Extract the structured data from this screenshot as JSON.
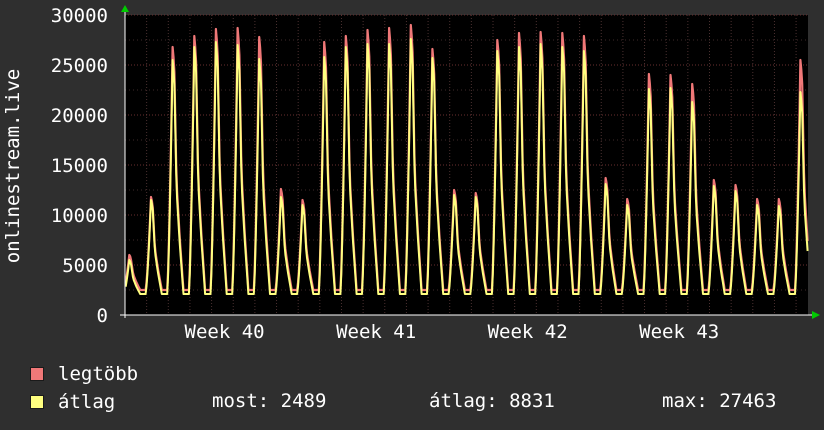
{
  "chart_data": {
    "type": "area",
    "ylabel": "onlinestream.live",
    "ylim": [
      0,
      30000
    ],
    "yticks": [
      0,
      5000,
      10000,
      15000,
      20000,
      25000,
      30000
    ],
    "xticks": [
      "Week 40",
      "Week 41",
      "Week 42",
      "Week 43"
    ],
    "grid": true,
    "legend_placement": "bottom-left",
    "series": [
      {
        "name": "legtöbb",
        "color": "#f07878",
        "daily_peaks": [
          6000,
          11800,
          26800,
          27900,
          28600,
          28700,
          27800,
          12600,
          11500,
          27300,
          27900,
          28500,
          28700,
          29000,
          26600,
          12500,
          12200,
          27500,
          28200,
          28300,
          28200,
          27900,
          13700,
          11600,
          24100,
          24000,
          23100,
          13500,
          13000,
          11600,
          11600,
          25500
        ]
      },
      {
        "name": "átlag",
        "color": "#ffff80",
        "daily_peaks": [
          5500,
          11500,
          25500,
          26800,
          27300,
          27000,
          25600,
          11800,
          11000,
          25800,
          26800,
          27100,
          27100,
          27600,
          25700,
          12000,
          11800,
          26400,
          26800,
          27100,
          26800,
          26400,
          13100,
          11000,
          22600,
          22700,
          21300,
          12900,
          12400,
          11000,
          10900,
          22300
        ]
      }
    ]
  },
  "legend": {
    "max_label": "legtöbb",
    "avg_label": "átlag",
    "max_color": "#f07878",
    "avg_color": "#ffff80"
  },
  "stats": {
    "current": "most: 2489",
    "average": "átlag: 8831",
    "maximum": "max: 27463"
  }
}
